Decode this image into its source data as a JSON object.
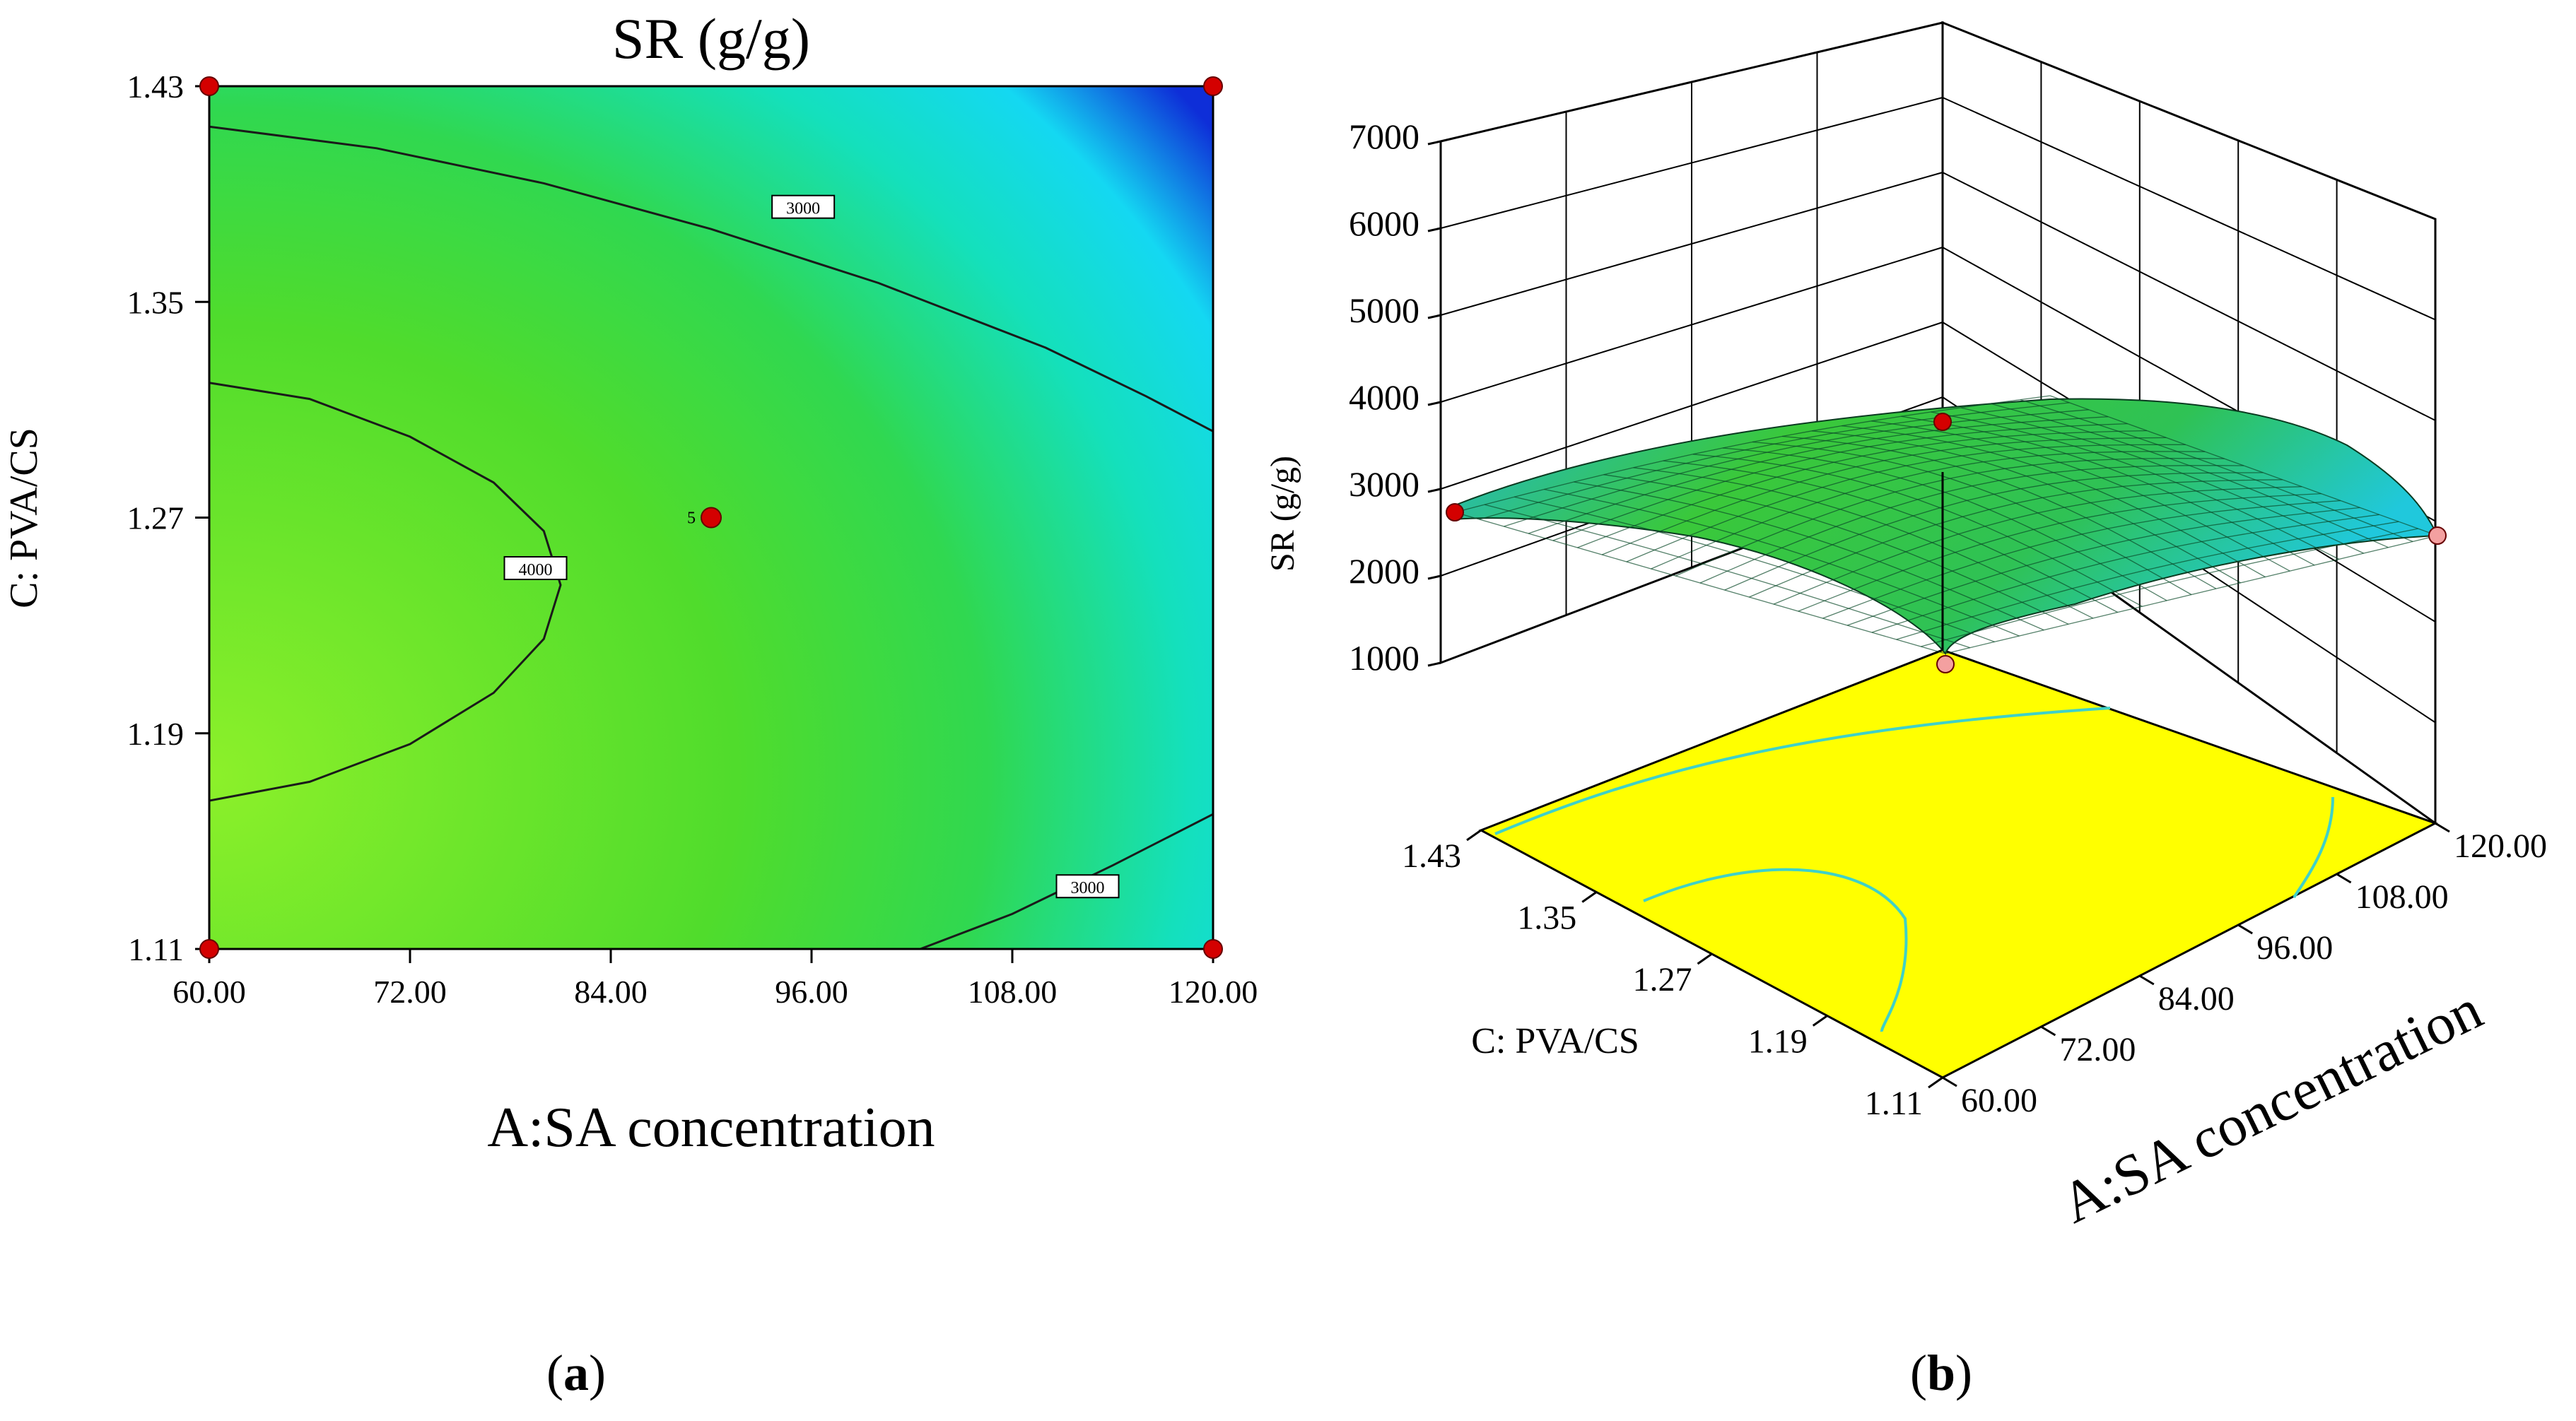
{
  "chart_data": [
    {
      "type": "contour",
      "panel_label": "a",
      "title": "SR (g/g)",
      "xlabel": "A:SA concentration",
      "ylabel": "C: PVA/CS",
      "xlim": [
        60,
        120
      ],
      "ylim": [
        1.11,
        1.43
      ],
      "x_ticks": [
        "60.00",
        "72.00",
        "84.00",
        "96.00",
        "108.00",
        "120.00"
      ],
      "y_ticks": [
        "1.11",
        "1.19",
        "1.27",
        "1.35",
        "1.43"
      ],
      "contours": [
        {
          "level": 3000,
          "label": "3000",
          "points": [
            [
              60,
              1.415
            ],
            [
              70,
              1.407
            ],
            [
              80,
              1.394
            ],
            [
              90,
              1.377
            ],
            [
              100,
              1.357
            ],
            [
              110,
              1.333
            ],
            [
              116,
              1.315
            ],
            [
              120,
              1.302
            ]
          ]
        },
        {
          "level": 3000,
          "label": "3000",
          "points": [
            [
              102.5,
              1.11
            ],
            [
              108,
              1.123
            ],
            [
              114,
              1.141
            ],
            [
              120,
              1.16
            ]
          ]
        },
        {
          "level": 4000,
          "label": "4000",
          "points": [
            [
              60,
              1.32
            ],
            [
              66,
              1.314
            ],
            [
              72,
              1.3
            ],
            [
              77,
              1.283
            ],
            [
              80,
              1.265
            ],
            [
              81,
              1.245
            ],
            [
              80,
              1.225
            ],
            [
              77,
              1.205
            ],
            [
              72,
              1.186
            ],
            [
              66,
              1.172
            ],
            [
              60,
              1.165
            ]
          ]
        }
      ],
      "contour_labels": [
        {
          "text": "3000",
          "x": 95.5,
          "y": 1.385
        },
        {
          "text": "3000",
          "x": 112.5,
          "y": 1.133
        },
        {
          "text": "4000",
          "x": 79.5,
          "y": 1.251
        }
      ],
      "design_points": [
        {
          "x": 60,
          "y": 1.43
        },
        {
          "x": 120,
          "y": 1.43
        },
        {
          "x": 60,
          "y": 1.11
        },
        {
          "x": 120,
          "y": 1.11
        }
      ],
      "center_point": {
        "x": 90,
        "y": 1.27,
        "label": "5"
      },
      "colors": {
        "low": "#0a2ad8",
        "mid": "#18e6e0",
        "high": "#40d82c",
        "peak": "#88f028"
      }
    },
    {
      "type": "surface3d",
      "panel_label": "b",
      "zlabel": "SR (g/g)",
      "xlabel": "A:SA concentration",
      "ylabel": "C: PVA/CS",
      "zlim": [
        1000,
        7000
      ],
      "z_ticks": [
        "1000",
        "2000",
        "3000",
        "4000",
        "5000",
        "6000",
        "7000"
      ],
      "x_ticks": [
        "60.00",
        "72.00",
        "84.00",
        "96.00",
        "108.00",
        "120.00"
      ],
      "y_ticks": [
        "1.11",
        "1.19",
        "1.27",
        "1.35",
        "1.43"
      ],
      "corner_points": [
        {
          "x": 60,
          "y": 1.43,
          "z": 2500
        },
        {
          "x": 120,
          "y": 1.43,
          "z": 1150
        },
        {
          "x": 60,
          "y": 1.11,
          "z": 2600
        },
        {
          "x": 120,
          "y": 1.11,
          "z": 2300
        }
      ],
      "center_point": {
        "x": 90,
        "y": 1.27,
        "z": 3800
      },
      "colors": {
        "surface_low": "#19c9d8",
        "surface_high": "#3ac83a",
        "floor": "#ffff00",
        "floor_contour": "#3fd1c8"
      }
    }
  ],
  "captions": {
    "a": "(a)",
    "b": "(b)"
  }
}
